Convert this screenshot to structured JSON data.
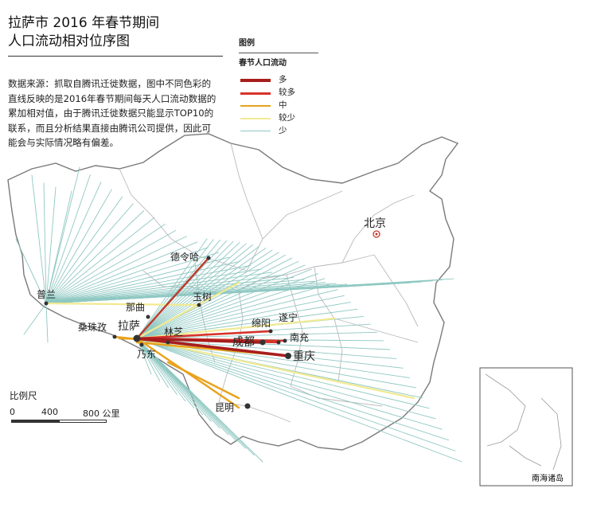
{
  "title_lines": [
    "拉萨市 2016 年春节期间",
    "人口流动相对位序图"
  ],
  "source_text": "数据来源：抓取自腾讯迁徙数据，图中不同色彩的直线反映的是2016年春节期间每天人口流动数据的累加相对值，由于腾讯迁徙数据只能显示TOP10的联系，而且分析结果直接由腾讯公司提供，因此可能会与实际情况略有偏差。",
  "legend": {
    "title": "图例",
    "subtitle": "春节人口流动",
    "items": [
      {
        "label": "多",
        "color": "#a81d1d",
        "level": 5
      },
      {
        "label": "较多",
        "color": "#d8332a",
        "level": 4
      },
      {
        "label": "中",
        "color": "#e8a21c",
        "level": 3
      },
      {
        "label": "较少",
        "color": "#f1ea92",
        "level": 2
      },
      {
        "label": "少",
        "color": "#8fc8c2",
        "level": 1
      }
    ]
  },
  "scale": {
    "title": "比例尺",
    "ticks": [
      "0",
      "400",
      "800 公里"
    ]
  },
  "inset_label": "南海诸岛",
  "cities": {
    "lhasa": "拉萨",
    "naqu": "那曲",
    "shannan": "乃东",
    "linzhi": "林芝",
    "rikaze": "桑珠孜",
    "pulan": "普兰",
    "delingha": "德令哈",
    "yushu": "玉树",
    "mianyang": "绵阳",
    "suining": "遂宁",
    "chengdu": "成都",
    "nanchong": "南充",
    "chongqing": "重庆",
    "kunming": "昆明",
    "beijing": "北京"
  },
  "colors": {
    "boundary": "#7a7a7a",
    "province": "#b9b9b9",
    "accent_lines": "#8fc8c2"
  }
}
